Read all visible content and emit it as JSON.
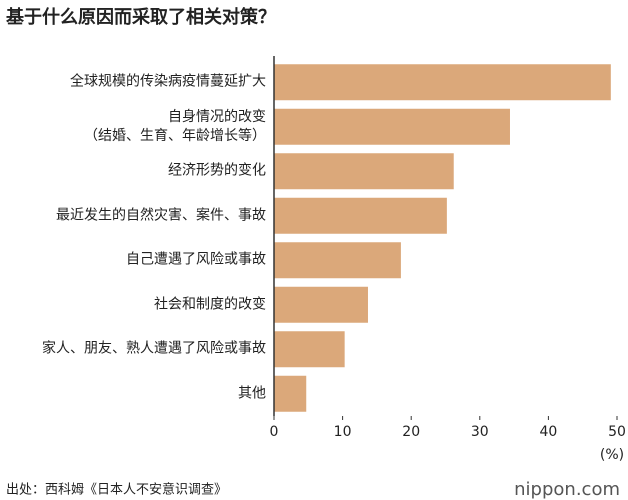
{
  "chart_data": {
    "type": "barh",
    "title": "基于什么原因而采取了相关对策？",
    "categories": [
      "全球规模的传染病疫情蔓延扩大",
      "自身情况的改变\n（结婚、生育、年龄增长等）",
      "经济形势的变化",
      "最近发生的自然灾害、案件、事故",
      "自己遭遇了风险或事故",
      "社会和制度的改变",
      "家人、朋友、熟人遭遇了风险或事故",
      "其他"
    ],
    "values": [
      49.1,
      34.4,
      26.2,
      25.2,
      18.5,
      13.7,
      10.3,
      4.7
    ],
    "color": "#dba87a",
    "xlim": [
      0,
      50
    ],
    "xticks": [
      0,
      10,
      20,
      30,
      40,
      50
    ],
    "grid": false,
    "x_unit": "(%)",
    "source": "出处：西科姆《日本人不安意识调查》",
    "logo": "nippon.com"
  }
}
